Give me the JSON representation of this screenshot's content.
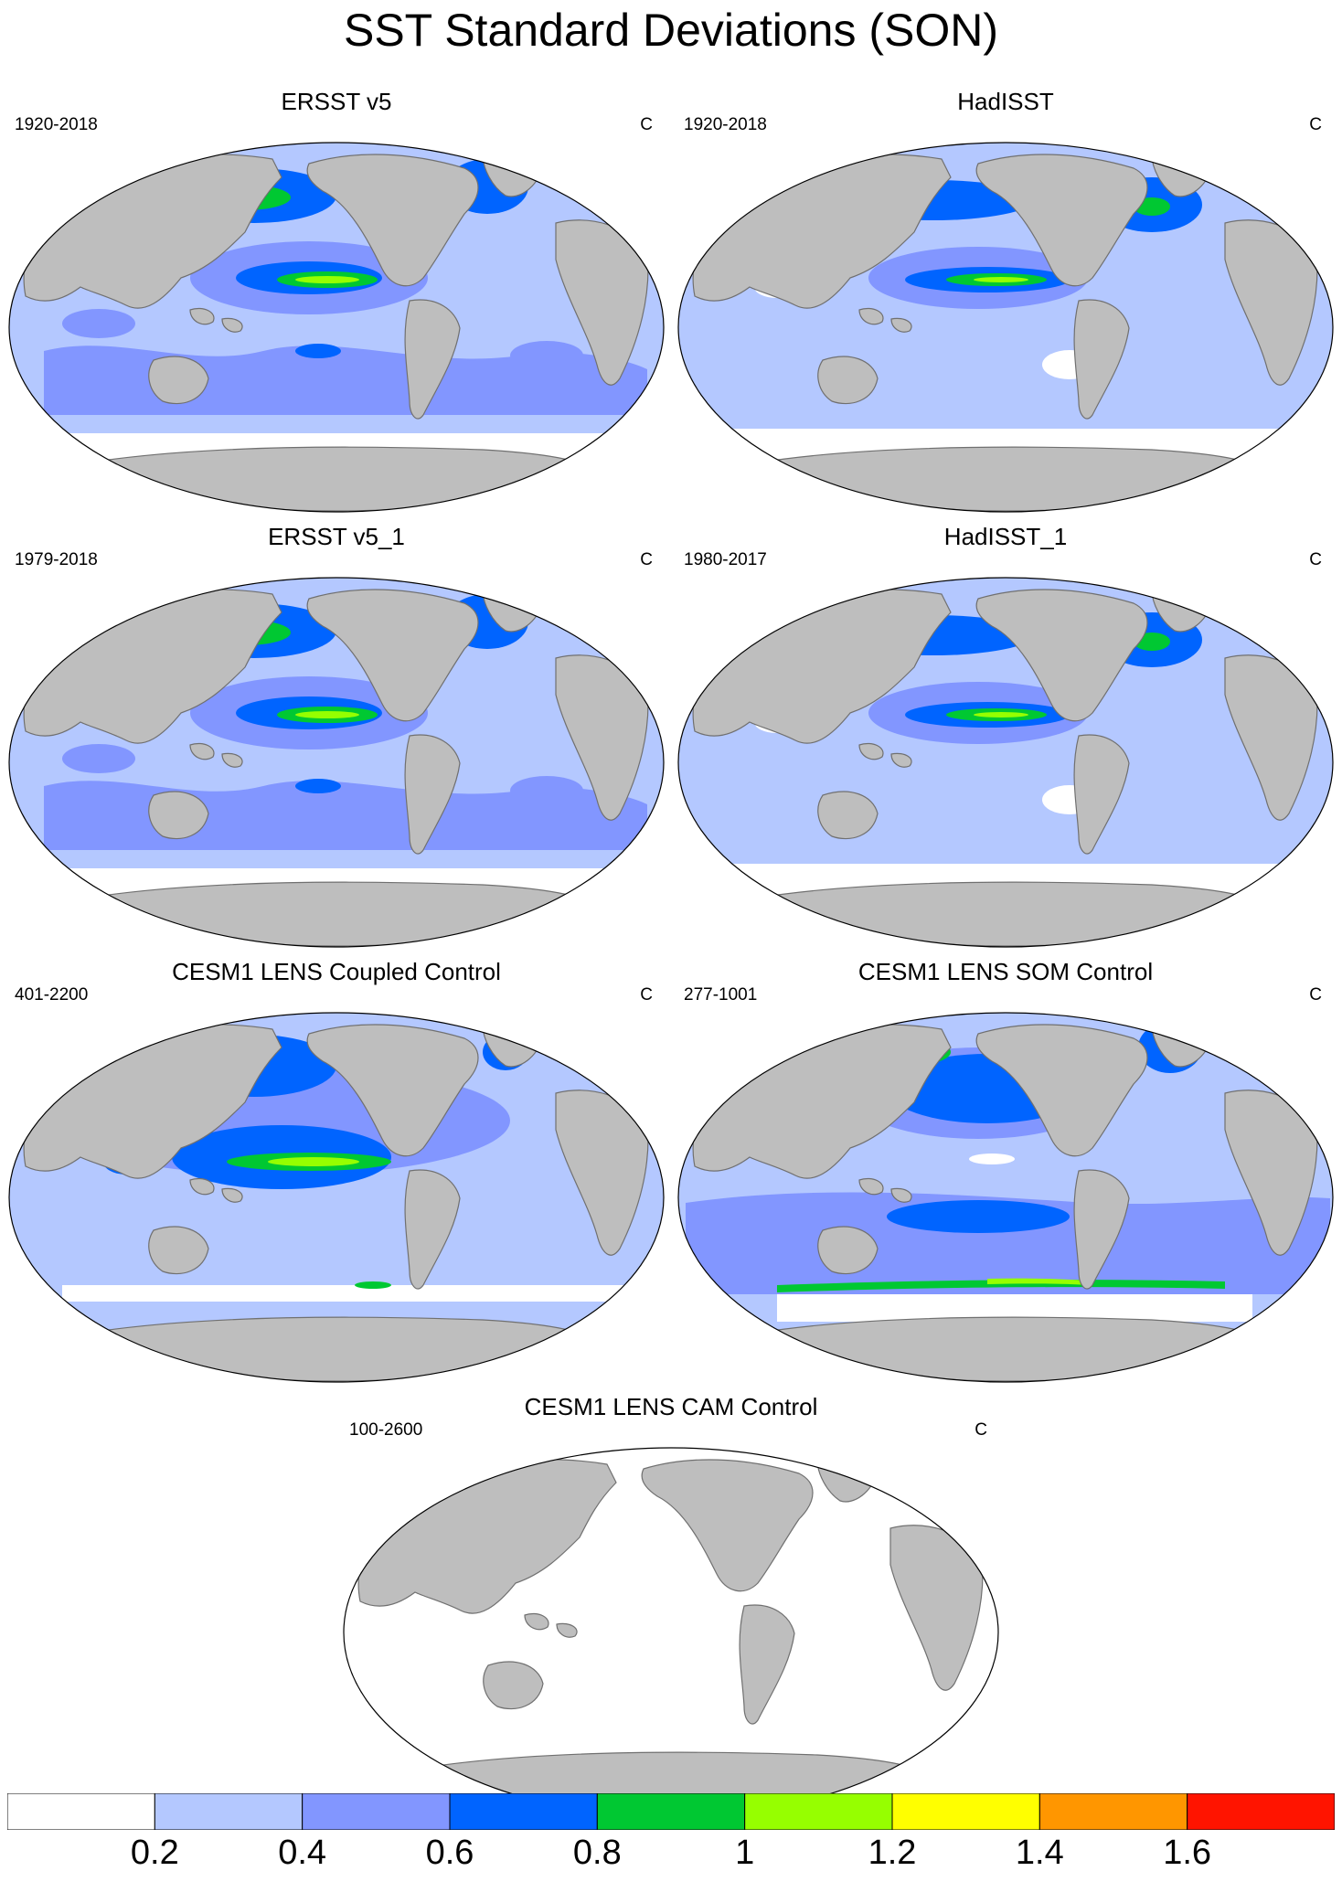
{
  "title": "SST Standard Deviations (SON)",
  "panels": [
    {
      "id": "ersst-v5",
      "title": "ERSST v5",
      "period": "1920-2018",
      "unit": "C",
      "style": "obs"
    },
    {
      "id": "hadisst",
      "title": "HadISST",
      "period": "1920-2018",
      "unit": "C",
      "style": "obs-light"
    },
    {
      "id": "ersst-v5-1",
      "title": "ERSST v5_1",
      "period": "1979-2018",
      "unit": "C",
      "style": "obs"
    },
    {
      "id": "hadisst-1",
      "title": "HadISST_1",
      "period": "1980-2017",
      "unit": "C",
      "style": "obs-light"
    },
    {
      "id": "cesm1-coupled",
      "title": "CESM1 LENS Coupled Control",
      "period": "401-2200",
      "unit": "C",
      "style": "coupled"
    },
    {
      "id": "cesm1-som",
      "title": "CESM1 LENS SOM Control",
      "period": "277-1001",
      "unit": "C",
      "style": "som"
    },
    {
      "id": "cesm1-cam",
      "title": "CESM1 LENS CAM Control",
      "period": "100-2600",
      "unit": "C",
      "style": "cam"
    }
  ],
  "colorbar": {
    "labels": [
      "0.2",
      "0.4",
      "0.6",
      "0.8",
      "1",
      "1.2",
      "1.4",
      "1.6"
    ],
    "colors": [
      "#ffffff",
      "#b4c8ff",
      "#8296ff",
      "#0064ff",
      "#00c832",
      "#96ff00",
      "#ffff00",
      "#ff9600",
      "#ff1400"
    ]
  },
  "colors": {
    "land": "#bebebe",
    "coast": "#707070"
  }
}
